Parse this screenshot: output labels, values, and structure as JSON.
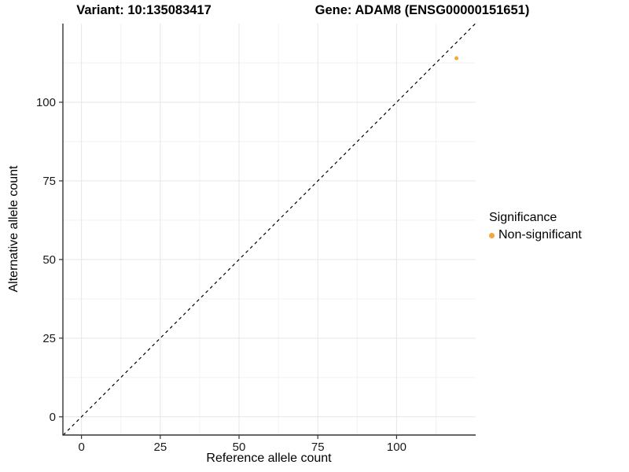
{
  "chart_data": {
    "type": "scatter",
    "variant_title": "Variant: 10:135083417",
    "gene_title": "Gene: ADAM8 (ENSG00000151651)",
    "xlabel": "Reference allele count",
    "ylabel": "Alternative allele count",
    "xlim": [
      -5.9,
      125.1
    ],
    "ylim": [
      -5.8,
      125.0
    ],
    "x_ticks": [
      0,
      25,
      50,
      75,
      100
    ],
    "y_ticks": [
      0,
      25,
      50,
      75,
      100
    ],
    "x_minor_ticks": [
      12.5,
      37.5,
      62.5,
      87.5,
      112.5
    ],
    "y_minor_ticks": [
      12.5,
      37.5,
      62.5,
      87.5,
      112.5
    ],
    "grid": true,
    "identity_line": {
      "type": "y=x",
      "style": "dashed",
      "color": "#000000"
    },
    "points": [
      {
        "x": 119,
        "y": 114,
        "series": "Non-significant",
        "color": "#F7A53C",
        "radius": 2.5
      }
    ],
    "legend": {
      "title": "Significance",
      "position": "right",
      "entries": [
        {
          "label": "Non-significant",
          "color": "#F7A53C"
        }
      ]
    }
  },
  "colors": {
    "background": "#FFFFFF",
    "axis_line": "#333333",
    "tick_mark": "#333333",
    "tick_label": "#1a1a1a",
    "grid_major": "#E6E6E6",
    "grid_minor": "#F2F2F2",
    "point": "#F7A53C",
    "identity_line": "#000000",
    "text": "#000000"
  }
}
